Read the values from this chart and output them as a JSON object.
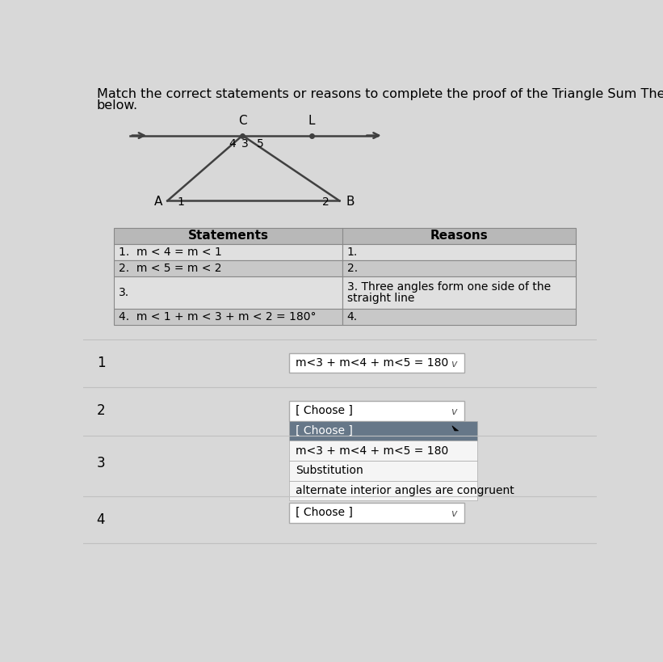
{
  "title_line1": "Match the correct statements or reasons to complete the proof of the Triangle Sum Theorem",
  "title_line2": "below.",
  "title_fontsize": 11.5,
  "bg_color": "#d8d8d8",
  "white": "#ffffff",
  "table_header_bg": "#b8b8b8",
  "table_row_bg_light": "#e0e0e0",
  "table_row_bg_dark": "#c8c8c8",
  "statements": [
    "1.  m < 4 = m < 1",
    "2.  m < 5 = m < 2",
    "3.",
    "4.  m < 1 + m < 3 + m < 2 = 180°"
  ],
  "reasons": [
    "1.",
    "2.",
    "3. Three angles form one side of the\nstraight line",
    "4."
  ],
  "dropdown1_text": "m<3 + m<4 + m<5 = 180",
  "dropdown2_text": "[ Choose ]",
  "dropdown_menu_items": [
    "[ Choose ]",
    "m<3 + m<4 + m<5 = 180",
    "Substitution",
    "alternate interior angles are congruent"
  ],
  "dropdown4_text": "[ Choose ]",
  "row_labels": [
    "1",
    "2",
    "3",
    "4"
  ],
  "menu_header_bg": "#667788",
  "menu_item_bg": "#f5f5f5",
  "menu_border": "#555566"
}
